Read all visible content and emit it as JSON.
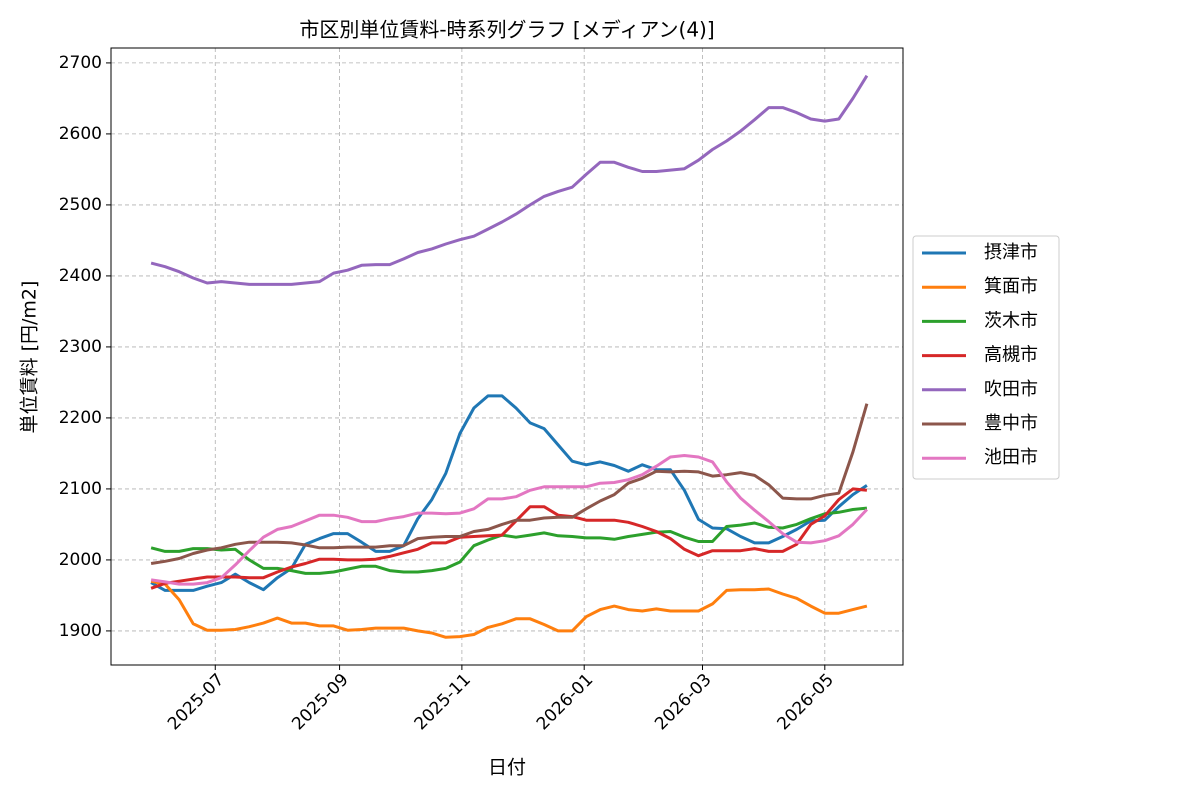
{
  "chart_data": {
    "type": "line",
    "title": "市区別単位賃料-時系列グラフ [メディアン(4)]",
    "x_label": "日付",
    "y_label": "単位賃料 [円/m2]",
    "x": [
      "2025-05-30",
      "2025-06-06",
      "2025-06-13",
      "2025-06-20",
      "2025-06-27",
      "2025-07-04",
      "2025-07-11",
      "2025-07-18",
      "2025-07-25",
      "2025-08-01",
      "2025-08-08",
      "2025-08-15",
      "2025-08-22",
      "2025-08-29",
      "2025-09-05",
      "2025-09-12",
      "2025-09-19",
      "2025-09-26",
      "2025-10-03",
      "2025-10-10",
      "2025-10-17",
      "2025-10-24",
      "2025-10-31",
      "2025-11-07",
      "2025-11-14",
      "2025-11-21",
      "2025-11-28",
      "2025-12-05",
      "2025-12-12",
      "2025-12-19",
      "2025-12-26",
      "2026-01-02",
      "2026-01-09",
      "2026-01-16",
      "2026-01-23",
      "2026-01-30",
      "2026-02-06",
      "2026-02-13",
      "2026-02-20",
      "2026-02-27",
      "2026-03-06",
      "2026-03-13",
      "2026-03-20",
      "2026-03-27",
      "2026-04-03",
      "2026-04-10",
      "2026-04-17",
      "2026-04-24",
      "2026-05-01",
      "2026-05-08",
      "2026-05-15",
      "2026-05-22"
    ],
    "xlim": [
      "2025-05-10",
      "2026-06-09"
    ],
    "xticks": [
      {
        "value": "2025-07-01",
        "label": "2025-07"
      },
      {
        "value": "2025-09-01",
        "label": "2025-09"
      },
      {
        "value": "2025-11-01",
        "label": "2025-11"
      },
      {
        "value": "2026-01-01",
        "label": "2026-01"
      },
      {
        "value": "2026-03-01",
        "label": "2026-03"
      },
      {
        "value": "2026-05-01",
        "label": "2026-05"
      }
    ],
    "ylim": [
      1852,
      2721
    ],
    "yticks": [
      1900,
      2000,
      2100,
      2200,
      2300,
      2400,
      2500,
      2600,
      2700
    ],
    "grid": true,
    "legend": "outside-right",
    "series": [
      {
        "name": "摂津市",
        "color": "#1f77b4",
        "values": [
          1968,
          1957,
          1957,
          1957,
          1963,
          1968,
          1980,
          1968,
          1958,
          1975,
          1988,
          2022,
          2030,
          2037,
          2037,
          2025,
          2012,
          2012,
          2020,
          2058,
          2085,
          2122,
          2178,
          2214,
          2231,
          2231,
          2214,
          2193,
          2185,
          2162,
          2139,
          2134,
          2138,
          2133,
          2125,
          2134,
          2127,
          2127,
          2098,
          2057,
          2045,
          2044,
          2033,
          2024,
          2024,
          2033,
          2043,
          2055,
          2056,
          2075,
          2092,
          2105
        ]
      },
      {
        "name": "箕面市",
        "color": "#ff7f0e",
        "values": [
          1970,
          1966,
          1944,
          1910,
          1901,
          1901,
          1902,
          1906,
          1911,
          1918,
          1911,
          1911,
          1907,
          1907,
          1901,
          1902,
          1904,
          1904,
          1904,
          1900,
          1897,
          1891,
          1892,
          1895,
          1905,
          1910,
          1917,
          1917,
          1909,
          1900,
          1900,
          1920,
          1930,
          1935,
          1930,
          1928,
          1931,
          1928,
          1928,
          1928,
          1938,
          1957,
          1958,
          1958,
          1959,
          1952,
          1946,
          1935,
          1925,
          1925,
          1930,
          1935
        ]
      },
      {
        "name": "茨木市",
        "color": "#2ca02c",
        "values": [
          2017,
          2012,
          2012,
          2016,
          2016,
          2014,
          2015,
          2000,
          1988,
          1988,
          1985,
          1981,
          1981,
          1983,
          1987,
          1991,
          1991,
          1985,
          1983,
          1983,
          1985,
          1988,
          1997,
          2020,
          2028,
          2035,
          2032,
          2035,
          2038,
          2034,
          2033,
          2031,
          2031,
          2029,
          2033,
          2036,
          2039,
          2040,
          2032,
          2026,
          2026,
          2047,
          2049,
          2052,
          2046,
          2045,
          2050,
          2058,
          2065,
          2067,
          2071,
          2073
        ]
      },
      {
        "name": "高槻市",
        "color": "#d62728",
        "values": [
          1960,
          1967,
          1970,
          1973,
          1976,
          1976,
          1976,
          1975,
          1975,
          1983,
          1990,
          1995,
          2001,
          2001,
          2000,
          2000,
          2001,
          2005,
          2010,
          2015,
          2024,
          2024,
          2032,
          2033,
          2034,
          2035,
          2055,
          2075,
          2075,
          2063,
          2061,
          2056,
          2056,
          2056,
          2053,
          2047,
          2040,
          2030,
          2015,
          2006,
          2013,
          2013,
          2013,
          2016,
          2012,
          2012,
          2022,
          2050,
          2062,
          2085,
          2100,
          2098
        ]
      },
      {
        "name": "吹田市",
        "color": "#9467bd",
        "values": [
          2418,
          2413,
          2406,
          2397,
          2390,
          2392,
          2390,
          2388,
          2388,
          2388,
          2388,
          2390,
          2392,
          2404,
          2408,
          2415,
          2416,
          2416,
          2424,
          2433,
          2438,
          2445,
          2451,
          2456,
          2466,
          2476,
          2487,
          2500,
          2512,
          2519,
          2525,
          2543,
          2560,
          2560,
          2553,
          2547,
          2547,
          2549,
          2551,
          2563,
          2578,
          2590,
          2604,
          2620,
          2637,
          2637,
          2630,
          2621,
          2618,
          2621,
          2650,
          2682
        ]
      },
      {
        "name": "豊中市",
        "color": "#8c564b",
        "values": [
          1995,
          1998,
          2002,
          2009,
          2014,
          2017,
          2022,
          2025,
          2025,
          2025,
          2024,
          2021,
          2017,
          2017,
          2018,
          2018,
          2018,
          2020,
          2020,
          2030,
          2032,
          2033,
          2033,
          2040,
          2043,
          2050,
          2056,
          2056,
          2059,
          2060,
          2060,
          2072,
          2083,
          2092,
          2108,
          2115,
          2125,
          2124,
          2125,
          2124,
          2118,
          2120,
          2123,
          2119,
          2106,
          2087,
          2086,
          2086,
          2091,
          2094,
          2152,
          2220
        ]
      },
      {
        "name": "池田市",
        "color": "#e377c2",
        "values": [
          1972,
          1969,
          1966,
          1966,
          1968,
          1975,
          1993,
          2013,
          2032,
          2043,
          2047,
          2055,
          2063,
          2063,
          2060,
          2054,
          2054,
          2058,
          2061,
          2066,
          2066,
          2065,
          2066,
          2072,
          2086,
          2086,
          2089,
          2098,
          2103,
          2103,
          2103,
          2103,
          2108,
          2109,
          2113,
          2120,
          2132,
          2145,
          2147,
          2145,
          2138,
          2110,
          2087,
          2070,
          2054,
          2037,
          2025,
          2024,
          2027,
          2034,
          2050,
          2071
        ]
      }
    ]
  }
}
